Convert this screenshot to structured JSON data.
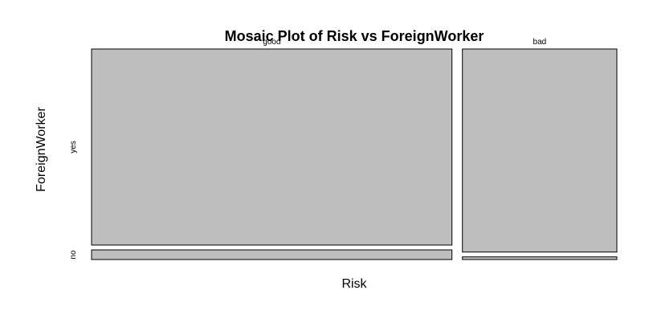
{
  "chart_data": {
    "type": "mosaic",
    "title": "Mosaic Plot of Risk vs ForeignWorker",
    "xlabel": "Risk",
    "ylabel": "ForeignWorker",
    "x_categories": [
      "good",
      "bad"
    ],
    "y_categories": [
      "yes",
      "no"
    ],
    "column_proportions": [
      0.7,
      0.3
    ],
    "within_column_proportions": {
      "good": {
        "yes": 0.953,
        "no": 0.047
      },
      "bad": {
        "yes": 0.987,
        "no": 0.013
      }
    },
    "fill_color": "#bebebe",
    "border_color": "#000000"
  }
}
